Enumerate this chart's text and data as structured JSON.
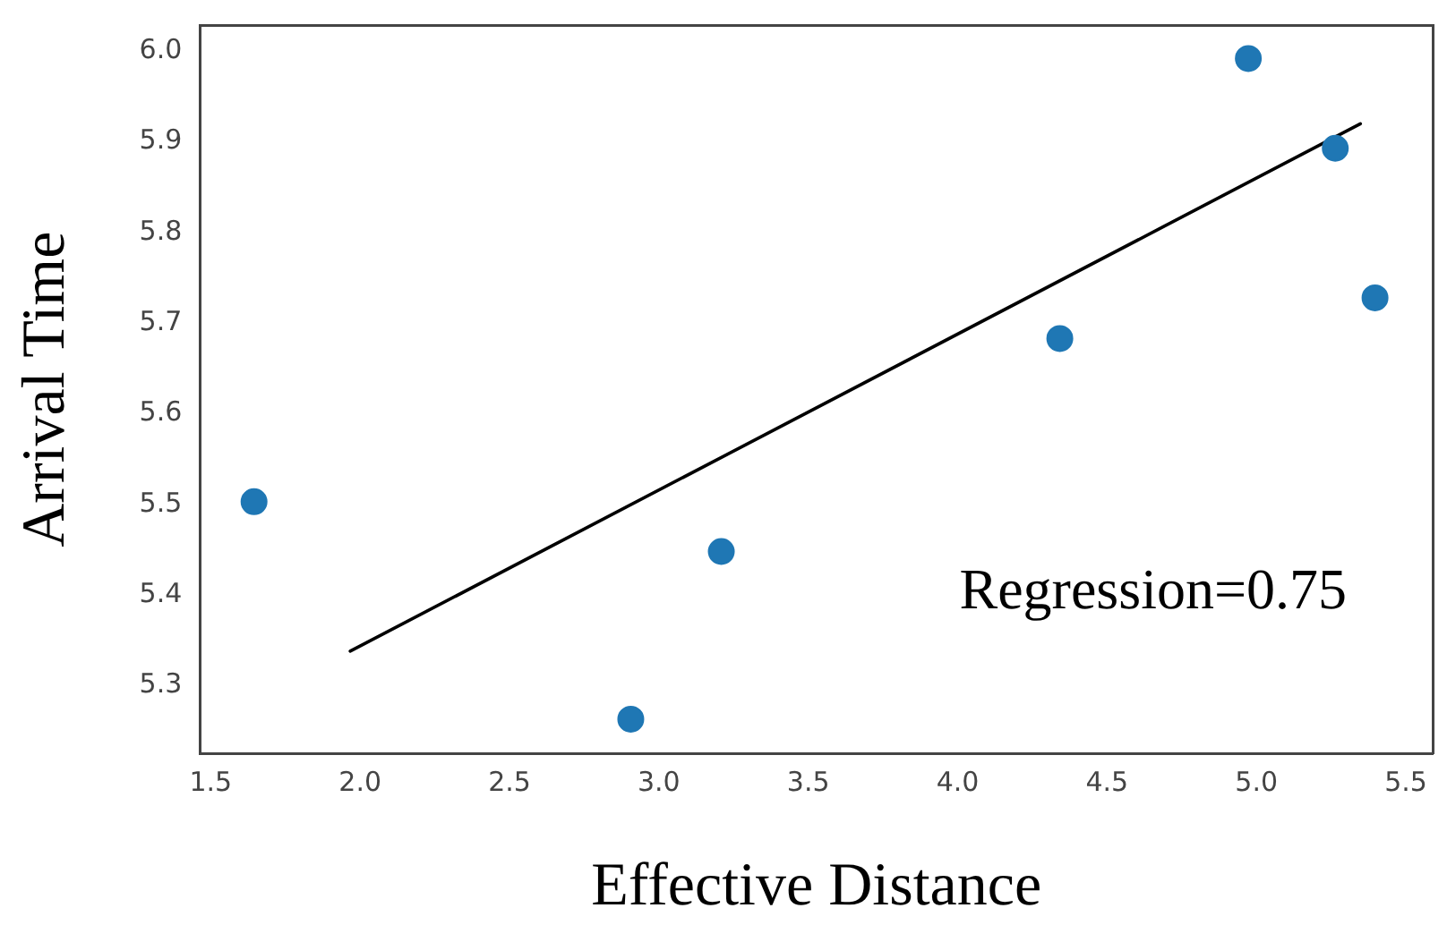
{
  "chart_data": {
    "type": "scatter",
    "xlabel": "Effective Distance",
    "ylabel": "Arrival Time",
    "xlim": [
      1.464,
      5.59
    ],
    "ylim": [
      5.225,
      6.029
    ],
    "xticks": [
      1.5,
      {
        "value": 2,
        "label": "2.0"
      },
      2.5,
      {
        "value": 3,
        "label": "3.0"
      },
      3.5,
      {
        "value": 4,
        "label": "4.0"
      },
      4.5,
      {
        "value": 5,
        "label": "5.0"
      },
      5.5
    ],
    "yticks": [
      5.3,
      5.4,
      5.5,
      5.6,
      5.7,
      5.8,
      5.9,
      {
        "value": 6,
        "label": "6.0"
      }
    ],
    "marker": "circle",
    "grid": false,
    "legend": false,
    "series": [
      {
        "color": "#1f77b4",
        "x": [
          1.645,
          2.906,
          3.209,
          4.342,
          4.973,
          5.264,
          5.397
        ],
        "values": [
          5.503,
          5.263,
          5.448,
          5.683,
          5.992,
          5.893,
          5.728
        ]
      },
      {
        "type": "line",
        "color": "#000000",
        "marker": "none",
        "x": [
          1.967,
          5.348
        ],
        "values": [
          5.338,
          5.92
        ]
      }
    ],
    "annotations": [
      "Regression=0.75"
    ]
  }
}
